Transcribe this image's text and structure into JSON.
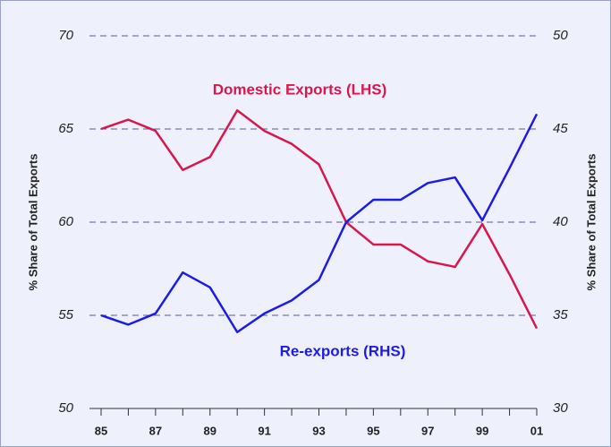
{
  "chart_data": {
    "type": "line",
    "categories": [
      "85",
      null,
      "87",
      null,
      "89",
      null,
      "91",
      null,
      "93",
      null,
      "95",
      null,
      "97",
      null,
      "99",
      null,
      "01"
    ],
    "series": [
      {
        "name": "Domestic Exports (LHS)",
        "color": "#d8174c",
        "values": [
          65.0,
          65.5,
          64.9,
          62.8,
          63.5,
          66.0,
          64.9,
          64.2,
          63.1,
          60.0,
          58.8,
          58.8,
          57.9,
          57.6,
          59.9,
          57.2,
          54.3
        ]
      },
      {
        "name": "Re-exports (RHS)",
        "color": "#1c1ce6",
        "axis": "y2",
        "values": [
          35.0,
          34.5,
          35.1,
          37.3,
          36.5,
          34.1,
          35.1,
          35.8,
          36.9,
          40.0,
          41.2,
          41.2,
          42.1,
          42.4,
          40.1,
          42.9,
          45.8
        ]
      }
    ],
    "ylabel": "% Share of Total Exports",
    "y2label": "% Share of Total Exports",
    "ylim": [
      50,
      70
    ],
    "yticks": [
      50,
      55,
      60,
      65,
      70
    ],
    "y2lim": [
      30,
      50
    ],
    "y2ticks": [
      30,
      35,
      40,
      45,
      50
    ],
    "grid": true
  }
}
